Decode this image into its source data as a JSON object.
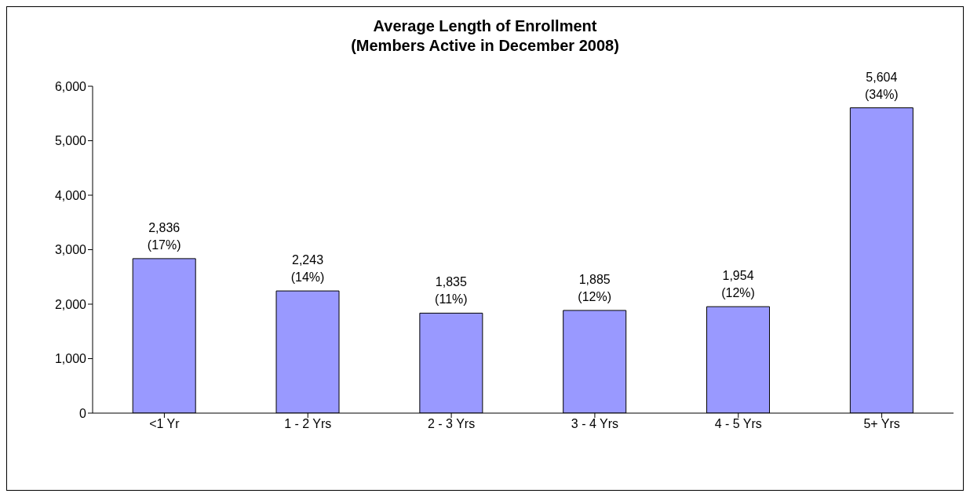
{
  "chart_data": {
    "type": "bar",
    "title": "Average Length of Enrollment\n(Members Active in December 2008)",
    "categories": [
      "<1 Yr",
      "1 - 2 Yrs",
      "2 - 3 Yrs",
      "3 - 4 Yrs",
      "4 - 5 Yrs",
      "5+ Yrs"
    ],
    "values": [
      2836,
      2243,
      1835,
      1885,
      1954,
      5604
    ],
    "value_labels": [
      "2,836\n(17%)",
      "2,243\n(14%)",
      "1,835\n(11%)",
      "1,885\n(12%)",
      "1,954\n(12%)",
      "5,604\n(34%)"
    ],
    "color": "#9999ff",
    "ylim": [
      0,
      6000
    ],
    "yticks": [
      0,
      {
        "value": 1000,
        "label": "1,000"
      },
      {
        "value": 2000,
        "label": "2,000"
      },
      {
        "value": 3000,
        "label": "3,000"
      },
      {
        "value": 4000,
        "label": "4,000"
      },
      {
        "value": 5000,
        "label": "5,000"
      },
      {
        "value": 6000,
        "label": "6,000"
      }
    ],
    "grid": false,
    "legend": false
  }
}
